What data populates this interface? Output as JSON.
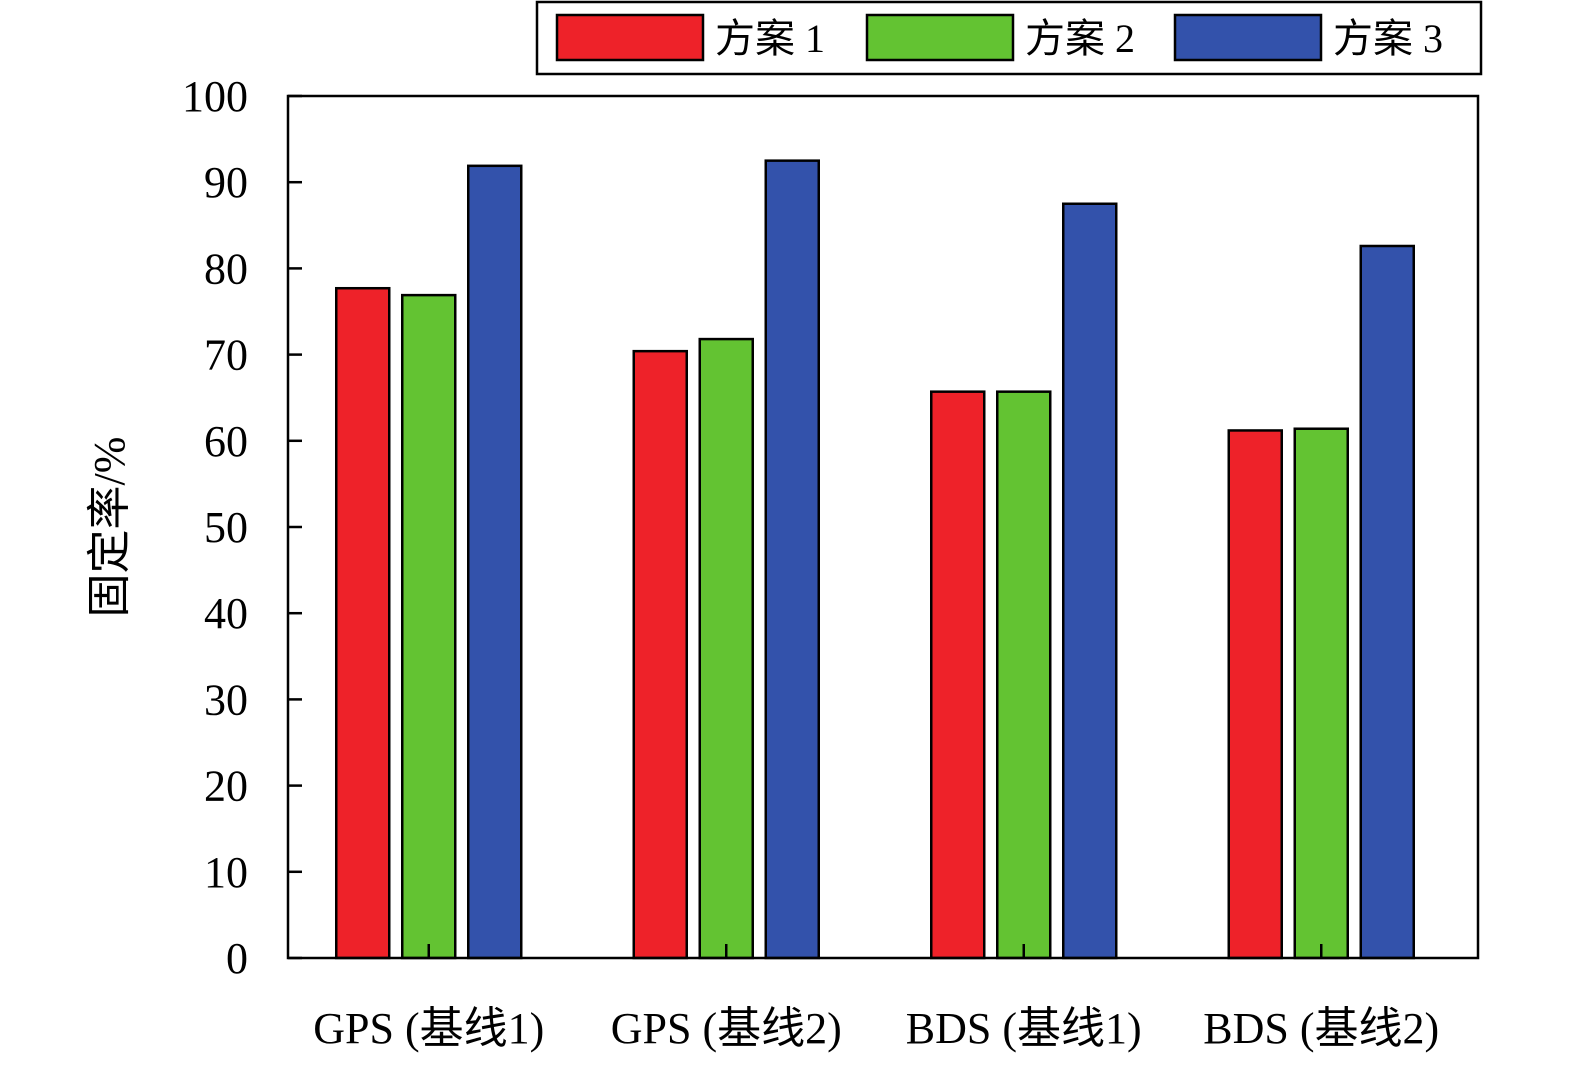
{
  "chart_data": {
    "type": "bar",
    "title": "",
    "xlabel": "",
    "ylabel": "固定率/%",
    "ylim": [
      0,
      100
    ],
    "yticks": [
      0,
      10,
      20,
      30,
      40,
      50,
      60,
      70,
      80,
      90,
      100
    ],
    "grid": false,
    "legend_position": "top-right",
    "categories": [
      "GPS (基线1)",
      "GPS (基线2)",
      "BDS (基线1)",
      "BDS (基线2)"
    ],
    "series": [
      {
        "name": "方案 1",
        "color": "#ee2229",
        "values": [
          77.7,
          70.4,
          65.7,
          61.2
        ]
      },
      {
        "name": "方案 2",
        "color": "#63c332",
        "values": [
          76.9,
          71.8,
          65.7,
          61.4
        ]
      },
      {
        "name": "方案 3",
        "color": "#3352ab",
        "values": [
          91.9,
          92.5,
          87.5,
          82.6
        ]
      }
    ]
  }
}
